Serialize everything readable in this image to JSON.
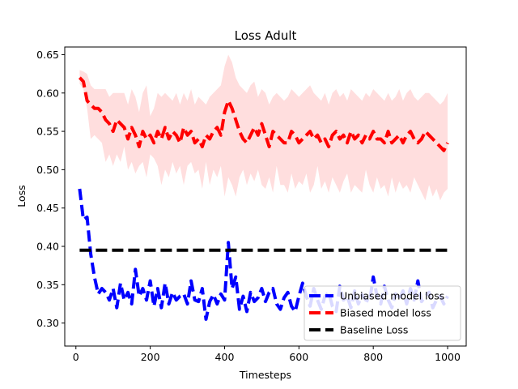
{
  "chart_data": {
    "type": "line",
    "title": "Loss Adult",
    "xlabel": "Timesteps",
    "ylabel": "Loss",
    "xlim": [
      -30,
      1050
    ],
    "ylim": [
      0.27,
      0.66
    ],
    "xticks": [
      0,
      200,
      400,
      600,
      800,
      1000
    ],
    "yticks": [
      0.3,
      0.35,
      0.4,
      0.45,
      0.5,
      0.55,
      0.6,
      0.65
    ],
    "grid": false,
    "legend_position": "lower-right",
    "x": [
      10,
      20,
      30,
      40,
      50,
      60,
      70,
      80,
      90,
      100,
      110,
      120,
      130,
      140,
      150,
      160,
      170,
      180,
      190,
      200,
      210,
      220,
      230,
      240,
      250,
      260,
      270,
      280,
      290,
      300,
      310,
      320,
      330,
      340,
      350,
      360,
      370,
      380,
      390,
      400,
      410,
      420,
      430,
      440,
      450,
      460,
      470,
      480,
      490,
      500,
      510,
      520,
      530,
      540,
      550,
      560,
      570,
      580,
      590,
      600,
      610,
      620,
      630,
      640,
      650,
      660,
      670,
      680,
      690,
      700,
      710,
      720,
      730,
      740,
      750,
      760,
      770,
      780,
      790,
      800,
      810,
      820,
      830,
      840,
      850,
      860,
      870,
      880,
      890,
      900,
      910,
      920,
      930,
      940,
      950,
      960,
      970,
      980,
      990,
      1000
    ],
    "series": [
      {
        "name": "Unbiased model loss",
        "color": "#0000ff",
        "style": "dashed",
        "values": [
          0.475,
          0.435,
          0.438,
          0.39,
          0.36,
          0.338,
          0.345,
          0.34,
          0.33,
          0.345,
          0.32,
          0.352,
          0.33,
          0.34,
          0.325,
          0.37,
          0.335,
          0.345,
          0.33,
          0.355,
          0.322,
          0.345,
          0.32,
          0.352,
          0.325,
          0.34,
          0.33,
          0.335,
          0.338,
          0.325,
          0.355,
          0.33,
          0.328,
          0.345,
          0.305,
          0.328,
          0.337,
          0.325,
          0.338,
          0.33,
          0.405,
          0.345,
          0.36,
          0.318,
          0.335,
          0.315,
          0.34,
          0.328,
          0.333,
          0.345,
          0.328,
          0.34,
          0.345,
          0.325,
          0.318,
          0.333,
          0.34,
          0.322,
          0.315,
          0.335,
          0.352,
          0.335,
          0.322,
          0.345,
          0.33,
          0.318,
          0.335,
          0.34,
          0.322,
          0.315,
          0.348,
          0.33,
          0.335,
          0.32,
          0.342,
          0.325,
          0.337,
          0.33,
          0.328,
          0.36,
          0.335,
          0.325,
          0.348,
          0.33,
          0.32,
          0.338,
          0.33,
          0.342,
          0.325,
          0.345,
          0.33,
          0.355,
          0.328,
          0.335,
          0.34,
          0.32,
          0.33,
          0.335,
          0.325,
          0.335
        ],
        "band": null
      },
      {
        "name": "Biased model loss",
        "color": "#ff0000",
        "style": "dashed",
        "values": [
          0.62,
          0.615,
          0.59,
          0.585,
          0.58,
          0.58,
          0.575,
          0.565,
          0.56,
          0.55,
          0.565,
          0.56,
          0.555,
          0.54,
          0.555,
          0.545,
          0.53,
          0.55,
          0.54,
          0.545,
          0.535,
          0.55,
          0.54,
          0.555,
          0.54,
          0.55,
          0.545,
          0.535,
          0.555,
          0.545,
          0.55,
          0.535,
          0.54,
          0.53,
          0.545,
          0.54,
          0.55,
          0.555,
          0.545,
          0.575,
          0.59,
          0.58,
          0.565,
          0.55,
          0.54,
          0.535,
          0.545,
          0.555,
          0.545,
          0.56,
          0.545,
          0.53,
          0.55,
          0.545,
          0.54,
          0.535,
          0.535,
          0.55,
          0.545,
          0.535,
          0.54,
          0.545,
          0.55,
          0.54,
          0.545,
          0.535,
          0.54,
          0.53,
          0.545,
          0.55,
          0.54,
          0.545,
          0.535,
          0.55,
          0.54,
          0.545,
          0.535,
          0.545,
          0.54,
          0.55,
          0.54,
          0.54,
          0.535,
          0.55,
          0.535,
          0.54,
          0.545,
          0.535,
          0.545,
          0.55,
          0.54,
          0.535,
          0.54,
          0.55,
          0.545,
          0.54,
          0.535,
          0.53,
          0.525,
          0.535
        ],
        "band": {
          "lower": [
            0.612,
            0.605,
            0.58,
            0.54,
            0.545,
            0.54,
            0.535,
            0.51,
            0.52,
            0.505,
            0.52,
            0.51,
            0.53,
            0.5,
            0.51,
            0.495,
            0.505,
            0.51,
            0.49,
            0.52,
            0.515,
            0.505,
            0.48,
            0.5,
            0.49,
            0.51,
            0.495,
            0.505,
            0.48,
            0.505,
            0.51,
            0.495,
            0.5,
            0.475,
            0.51,
            0.48,
            0.5,
            0.49,
            0.505,
            0.465,
            0.49,
            0.48,
            0.465,
            0.49,
            0.5,
            0.48,
            0.495,
            0.485,
            0.5,
            0.48,
            0.475,
            0.49,
            0.47,
            0.505,
            0.48,
            0.48,
            0.47,
            0.495,
            0.475,
            0.485,
            0.48,
            0.495,
            0.47,
            0.48,
            0.505,
            0.475,
            0.485,
            0.47,
            0.49,
            0.48,
            0.47,
            0.485,
            0.495,
            0.47,
            0.48,
            0.475,
            0.47,
            0.5,
            0.48,
            0.47,
            0.49,
            0.475,
            0.48,
            0.465,
            0.49,
            0.47,
            0.485,
            0.475,
            0.48,
            0.47,
            0.49,
            0.48,
            0.47,
            0.46,
            0.48,
            0.465,
            0.475,
            0.46,
            0.47,
            0.475
          ],
          "upper": [
            0.63,
            0.628,
            0.625,
            0.61,
            0.605,
            0.605,
            0.605,
            0.605,
            0.595,
            0.6,
            0.6,
            0.6,
            0.6,
            0.585,
            0.605,
            0.595,
            0.575,
            0.6,
            0.61,
            0.57,
            0.58,
            0.6,
            0.595,
            0.6,
            0.595,
            0.59,
            0.6,
            0.585,
            0.6,
            0.59,
            0.605,
            0.585,
            0.595,
            0.59,
            0.585,
            0.595,
            0.6,
            0.605,
            0.61,
            0.635,
            0.65,
            0.64,
            0.62,
            0.61,
            0.605,
            0.6,
            0.61,
            0.615,
            0.595,
            0.605,
            0.6,
            0.585,
            0.595,
            0.6,
            0.595,
            0.59,
            0.595,
            0.605,
            0.6,
            0.595,
            0.6,
            0.605,
            0.61,
            0.6,
            0.595,
            0.59,
            0.6,
            0.585,
            0.6,
            0.605,
            0.595,
            0.6,
            0.59,
            0.605,
            0.6,
            0.595,
            0.59,
            0.6,
            0.595,
            0.605,
            0.6,
            0.595,
            0.59,
            0.6,
            0.59,
            0.595,
            0.605,
            0.59,
            0.6,
            0.605,
            0.595,
            0.59,
            0.595,
            0.6,
            0.6,
            0.595,
            0.59,
            0.585,
            0.59,
            0.6
          ]
        }
      },
      {
        "name": "Baseline Loss",
        "color": "#000000",
        "style": "dashed",
        "values": [
          0.395,
          0.395,
          0.395,
          0.395,
          0.395,
          0.395,
          0.395,
          0.395,
          0.395,
          0.395,
          0.395,
          0.395,
          0.395,
          0.395,
          0.395,
          0.395,
          0.395,
          0.395,
          0.395,
          0.395,
          0.395,
          0.395,
          0.395,
          0.395,
          0.395,
          0.395,
          0.395,
          0.395,
          0.395,
          0.395,
          0.395,
          0.395,
          0.395,
          0.395,
          0.395,
          0.395,
          0.395,
          0.395,
          0.395,
          0.395,
          0.395,
          0.395,
          0.395,
          0.395,
          0.395,
          0.395,
          0.395,
          0.395,
          0.395,
          0.395,
          0.395,
          0.395,
          0.395,
          0.395,
          0.395,
          0.395,
          0.395,
          0.395,
          0.395,
          0.395,
          0.395,
          0.395,
          0.395,
          0.395,
          0.395,
          0.395,
          0.395,
          0.395,
          0.395,
          0.395,
          0.395,
          0.395,
          0.395,
          0.395,
          0.395,
          0.395,
          0.395,
          0.395,
          0.395,
          0.395,
          0.395,
          0.395,
          0.395,
          0.395,
          0.395,
          0.395,
          0.395,
          0.395,
          0.395,
          0.395,
          0.395,
          0.395,
          0.395,
          0.395,
          0.395,
          0.395,
          0.395,
          0.395,
          0.395,
          0.395
        ],
        "band": null
      }
    ]
  }
}
